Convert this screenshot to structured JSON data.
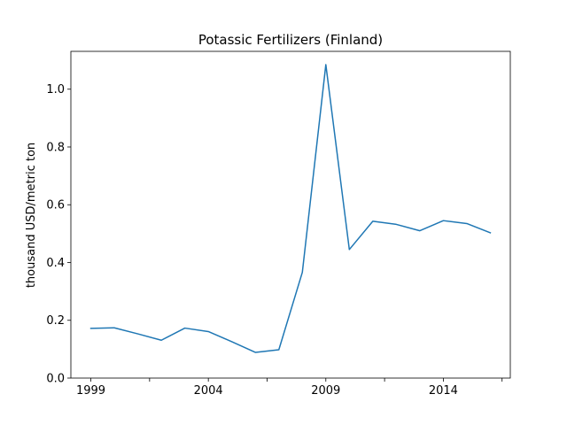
{
  "chart_data": {
    "type": "line",
    "title": "Potassic Fertilizers (Finland)",
    "xlabel": "",
    "ylabel": "thousand USD/metric ton",
    "x": [
      1999,
      2000,
      2001,
      2002,
      2003,
      2004,
      2005,
      2006,
      2007,
      2008,
      2009,
      2010,
      2011,
      2012,
      2013,
      2014,
      2015,
      2016
    ],
    "series": [
      {
        "values": [
          0.172,
          0.174,
          0.153,
          0.131,
          0.173,
          0.161,
          0.126,
          0.089,
          0.098,
          0.366,
          1.085,
          0.445,
          0.543,
          0.532,
          0.51,
          0.545,
          0.535,
          0.503
        ],
        "color": "#1f77b4"
      }
    ],
    "xlim": [
      1998.15,
      2016.85
    ],
    "ylim": [
      0.0,
      1.131
    ],
    "xticks": [
      1999,
      2004,
      2009,
      2014
    ],
    "xminor_ticks": [
      2001.5,
      2006.5,
      2011.5,
      2016.5
    ],
    "xtick_labels": [
      "1999",
      "2004",
      "2009",
      "2014"
    ],
    "yticks": [
      0.0,
      0.2,
      0.4,
      0.6,
      0.8,
      1.0
    ],
    "ytick_labels": [
      "0.0",
      "0.2",
      "0.4",
      "0.6",
      "0.8",
      "1.0"
    ],
    "grid": false,
    "legend": "none"
  }
}
